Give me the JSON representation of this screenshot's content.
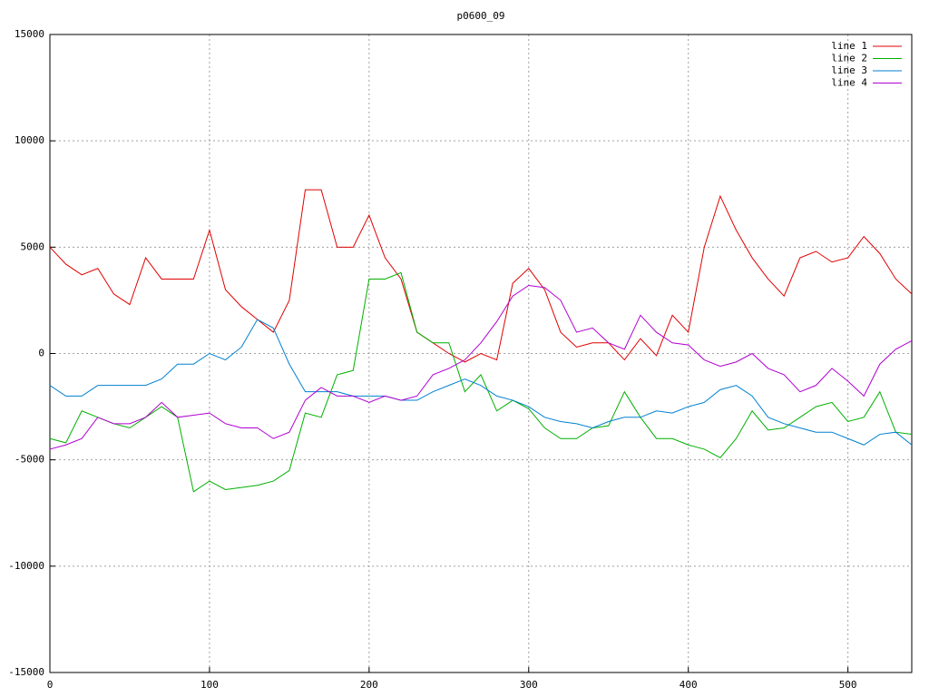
{
  "chart_data": {
    "type": "line",
    "title": "p0600_09",
    "x": [
      0,
      10,
      20,
      30,
      40,
      50,
      60,
      70,
      80,
      90,
      100,
      110,
      120,
      130,
      140,
      150,
      160,
      170,
      180,
      190,
      200,
      210,
      220,
      230,
      240,
      250,
      260,
      270,
      280,
      290,
      300,
      310,
      320,
      330,
      340,
      350,
      360,
      370,
      380,
      390,
      400,
      410,
      420,
      430,
      440,
      450,
      460,
      470,
      480,
      490,
      500,
      510,
      520,
      530,
      540
    ],
    "xlim": [
      0,
      540
    ],
    "xticks": [
      0,
      100,
      200,
      300,
      400,
      500
    ],
    "ylim": [
      -15000,
      15000
    ],
    "yticks": [
      -15000,
      -10000,
      -5000,
      0,
      5000,
      10000,
      15000
    ],
    "grid": true,
    "legend": "top-right",
    "series": [
      {
        "name": "line 1",
        "color": "#e00000",
        "values": [
          5000,
          4200,
          3700,
          4000,
          2800,
          2300,
          4500,
          3500,
          3500,
          3500,
          5800,
          3000,
          2200,
          1600,
          1000,
          2500,
          7700,
          7700,
          5000,
          5000,
          6500,
          4500,
          3500,
          1000,
          500,
          0,
          -400,
          0,
          -300,
          3300,
          4000,
          3000,
          1000,
          300,
          500,
          500,
          -300,
          700,
          -100,
          1800,
          1000,
          5000,
          7400,
          5800,
          4500,
          3500,
          2700,
          4500,
          4800,
          4300,
          4500,
          5500,
          4700,
          3500,
          2800
        ]
      },
      {
        "name": "line 2",
        "color": "#00b000",
        "values": [
          -4000,
          -4200,
          -2700,
          -3000,
          -3300,
          -3500,
          -3000,
          -2500,
          -3000,
          -6500,
          -6000,
          -6400,
          -6300,
          -6200,
          -6000,
          -5500,
          -2800,
          -3000,
          -1000,
          -800,
          3500,
          3500,
          3800,
          1000,
          500,
          500,
          -1800,
          -1000,
          -2700,
          -2200,
          -2600,
          -3500,
          -4000,
          -4000,
          -3500,
          -3400,
          -1800,
          -3000,
          -4000,
          -4000,
          -4300,
          -4500,
          -4900,
          -4000,
          -2700,
          -3600,
          -3500,
          -3000,
          -2500,
          -2300,
          -3200,
          -3000,
          -1800,
          -3700,
          -3800
        ]
      },
      {
        "name": "line 3",
        "color": "#0080d0",
        "values": [
          -1500,
          -2000,
          -2000,
          -1500,
          -1500,
          -1500,
          -1500,
          -1200,
          -500,
          -500,
          0,
          -300,
          300,
          1600,
          1200,
          -500,
          -1800,
          -1800,
          -1800,
          -2000,
          -2000,
          -2000,
          -2200,
          -2200,
          -1800,
          -1500,
          -1200,
          -1500,
          -2000,
          -2200,
          -2500,
          -3000,
          -3200,
          -3300,
          -3500,
          -3200,
          -3000,
          -3000,
          -2700,
          -2800,
          -2500,
          -2300,
          -1700,
          -1500,
          -2000,
          -3000,
          -3300,
          -3500,
          -3700,
          -3700,
          -4000,
          -4300,
          -3800,
          -3700,
          -4300
        ]
      },
      {
        "name": "line 4",
        "color": "#b000d0",
        "values": [
          -4500,
          -4300,
          -4000,
          -3000,
          -3300,
          -3300,
          -3000,
          -2300,
          -3000,
          -2900,
          -2800,
          -3300,
          -3500,
          -3500,
          -4000,
          -3700,
          -2200,
          -1600,
          -2000,
          -2000,
          -2300,
          -2000,
          -2200,
          -2000,
          -1000,
          -700,
          -300,
          500,
          1500,
          2700,
          3200,
          3100,
          2500,
          1000,
          1200,
          500,
          200,
          1800,
          1000,
          500,
          400,
          -300,
          -600,
          -400,
          0,
          -700,
          -1000,
          -1800,
          -1500,
          -700,
          -1300,
          -2000,
          -500,
          200,
          600
        ]
      }
    ]
  }
}
